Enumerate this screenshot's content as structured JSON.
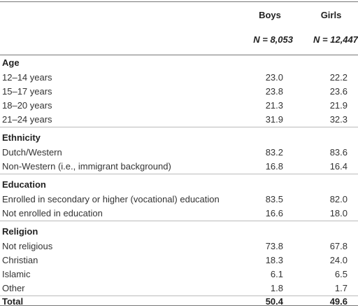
{
  "table": {
    "columns": [
      "Boys",
      "Girls"
    ],
    "sample_sizes": [
      "N = 8,053",
      "N = 12,447"
    ],
    "sections": [
      {
        "title": "Age",
        "rows": [
          [
            "12–14 years",
            "23.0",
            "22.2"
          ],
          [
            "15–17 years",
            "23.8",
            "23.6"
          ],
          [
            "18–20 years",
            "21.3",
            "21.9"
          ],
          [
            "21–24 years",
            "31.9",
            "32.3"
          ]
        ]
      },
      {
        "title": "Ethnicity",
        "rows": [
          [
            "Dutch/Western",
            "83.2",
            "83.6"
          ],
          [
            "Non-Western (i.e., immigrant background)",
            "16.8",
            "16.4"
          ]
        ]
      },
      {
        "title": "Education",
        "rows": [
          [
            "Enrolled in secondary or higher (vocational) education",
            "83.5",
            "82.0"
          ],
          [
            "Not enrolled in education",
            "16.6",
            "18.0"
          ]
        ]
      },
      {
        "title": "Religion",
        "rows": [
          [
            "Not religious",
            "73.8",
            "67.8"
          ],
          [
            "Christian",
            "18.3",
            "24.0"
          ],
          [
            "Islamic",
            "6.1",
            "6.5"
          ],
          [
            "Other",
            "1.8",
            "1.7"
          ]
        ]
      }
    ],
    "total": [
      "Total",
      "50.4",
      "49.6"
    ]
  }
}
